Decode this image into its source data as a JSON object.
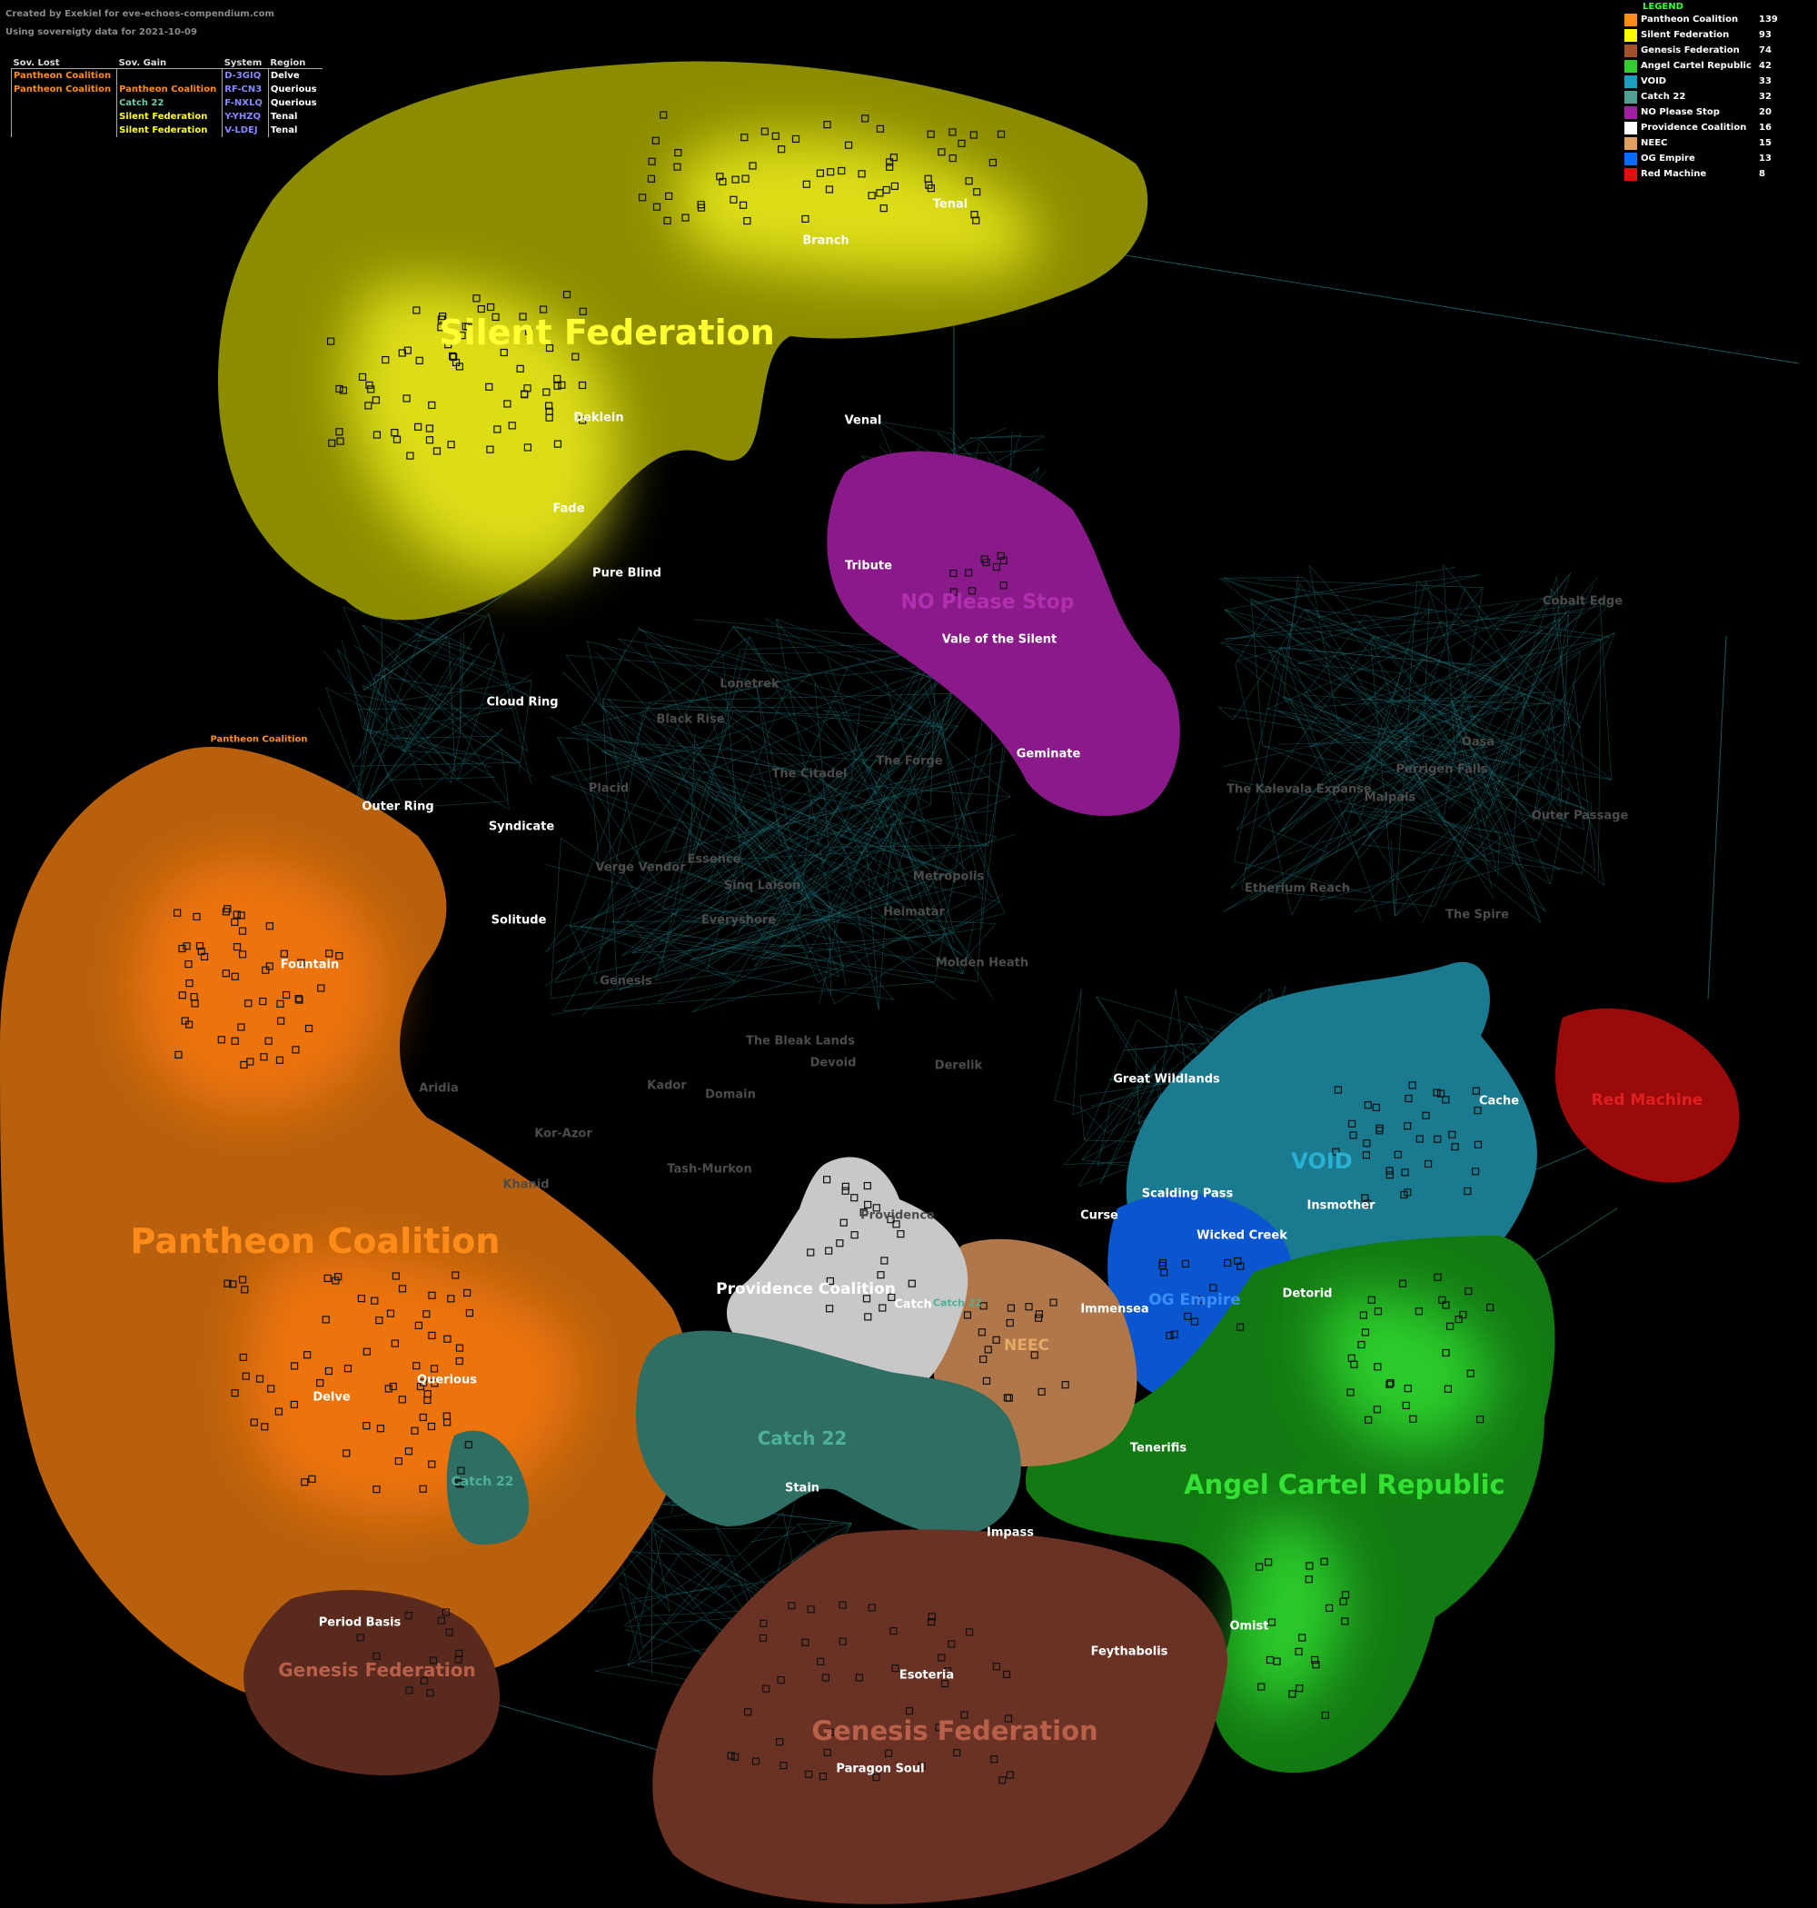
{
  "credit": {
    "line1": "Created by Exekiel for eve-echoes-compendium.com",
    "line2": "Using sovereigty data for 2021-10-09"
  },
  "changes": {
    "headers": [
      "Sov. Lost",
      "Sov. Gain",
      "System",
      "Region"
    ],
    "rows": [
      {
        "lost": "Pantheon Coalition",
        "lost_color": "#ff8c1a",
        "gain": "",
        "gain_color": "#ff8c1a",
        "system": "D-3GIQ",
        "region": "Delve"
      },
      {
        "lost": "Pantheon Coalition",
        "lost_color": "#ff8c1a",
        "gain": "Pantheon Coalition",
        "gain_color": "#ff8c1a",
        "system": "RF-CN3",
        "region": "Querious"
      },
      {
        "lost": "",
        "lost_color": "#ff8c1a",
        "gain": "Catch 22",
        "gain_color": "#6fc8b0",
        "system": "F-NXLQ",
        "region": "Querious"
      },
      {
        "lost": "",
        "lost_color": "#ff8c1a",
        "gain": "Silent Federation",
        "gain_color": "#ffff22",
        "system": "Y-YHZQ",
        "region": "Tenal"
      },
      {
        "lost": "",
        "lost_color": "#ff8c1a",
        "gain": "Silent Federation",
        "gain_color": "#ffff22",
        "system": "V-LDEJ",
        "region": "Tenal"
      }
    ],
    "system_color": "#8888ff"
  },
  "legend": {
    "title": "LEGEND",
    "items": [
      {
        "name": "Pantheon Coalition",
        "count": "139",
        "color": "#ff8c1a"
      },
      {
        "name": "Silent Federation",
        "count": "93",
        "color": "#ffff00"
      },
      {
        "name": "Genesis Federation",
        "count": "74",
        "color": "#a0522d"
      },
      {
        "name": "Angel Cartel Republic",
        "count": "42",
        "color": "#33cc33"
      },
      {
        "name": "VOID",
        "count": "33",
        "color": "#1a9fbf"
      },
      {
        "name": "Catch 22",
        "count": "32",
        "color": "#4fa090"
      },
      {
        "name": "NO Please Stop",
        "count": "20",
        "color": "#a020a0"
      },
      {
        "name": "Providence Coalition",
        "count": "16",
        "color": "#ffffff"
      },
      {
        "name": "NEEC",
        "count": "15",
        "color": "#e0a060"
      },
      {
        "name": "OG Empire",
        "count": "13",
        "color": "#0a6cff"
      },
      {
        "name": "Red Machine",
        "count": "8",
        "color": "#e01010"
      }
    ]
  },
  "alliance_labels": [
    {
      "text": "Silent Federation",
      "color": "#ffff33",
      "size": 38
    },
    {
      "text": "NO Please Stop",
      "color": "#b030b0",
      "size": 22
    },
    {
      "text": "Pantheon Coalition",
      "color": "#ff8c1a",
      "size": 38
    },
    {
      "text": "Pantheon Coalition",
      "color": "#ff8c1a",
      "size": 10
    },
    {
      "text": "VOID",
      "color": "#2ab0d0",
      "size": 24
    },
    {
      "text": "Red Machine",
      "color": "#e02020",
      "size": 17
    },
    {
      "text": "OG Empire",
      "color": "#3a8fff",
      "size": 17
    },
    {
      "text": "Providence Coalition",
      "color": "#ffffff",
      "size": 17
    },
    {
      "text": "NEEC",
      "color": "#e8a868",
      "size": 17
    },
    {
      "text": "Catch 22",
      "color": "#4fb098",
      "size": 20
    },
    {
      "text": "Catch 22",
      "color": "#4fb098",
      "size": 14
    },
    {
      "text": "Catch 22",
      "color": "#4fb098",
      "size": 11
    },
    {
      "text": "Angel Cartel Republic",
      "color": "#33e033",
      "size": 29
    },
    {
      "text": "Genesis Federation",
      "color": "#b8604a",
      "size": 29
    },
    {
      "text": "Genesis Federation",
      "color": "#b8604a",
      "size": 20
    }
  ],
  "regions_null": [
    "Tenal",
    "Branch",
    "Deklein",
    "Venal",
    "Fade",
    "Tribute",
    "Pure Blind",
    "Vale of the Silent",
    "Cloud Ring",
    "Geminate",
    "Outer Ring",
    "Syndicate",
    "Solitude",
    "Fountain",
    "Great Wildlands",
    "Cache",
    "Scalding Pass",
    "Insmother",
    "Curse",
    "Wicked Creek",
    "Detorid",
    "Immensea",
    "Querious",
    "Delve",
    "Catch",
    "Tenerifis",
    "Stain",
    "Impass",
    "Omist",
    "Period Basis",
    "Feythabolis",
    "Esoteria",
    "Paragon Soul"
  ],
  "regions_empire": [
    "Lonetrek",
    "Black Rise",
    "The Citadel",
    "The Forge",
    "Placid",
    "Essence",
    "Verge Vendor",
    "Sinq Laison",
    "Metropolis",
    "Heimatar",
    "Everyshore",
    "Genesis",
    "Molden Heath",
    "The Bleak Lands",
    "Devoid",
    "Derelik",
    "Aridia",
    "Kador",
    "Domain",
    "Kor-Azor",
    "Khanid",
    "Tash-Murkon",
    "Providence",
    "Cobalt Edge",
    "Oasa",
    "Perrigen Falls",
    "The Kalevala Expanse",
    "Malpais",
    "Outer Passage",
    "Etherium Reach",
    "The Spire"
  ]
}
